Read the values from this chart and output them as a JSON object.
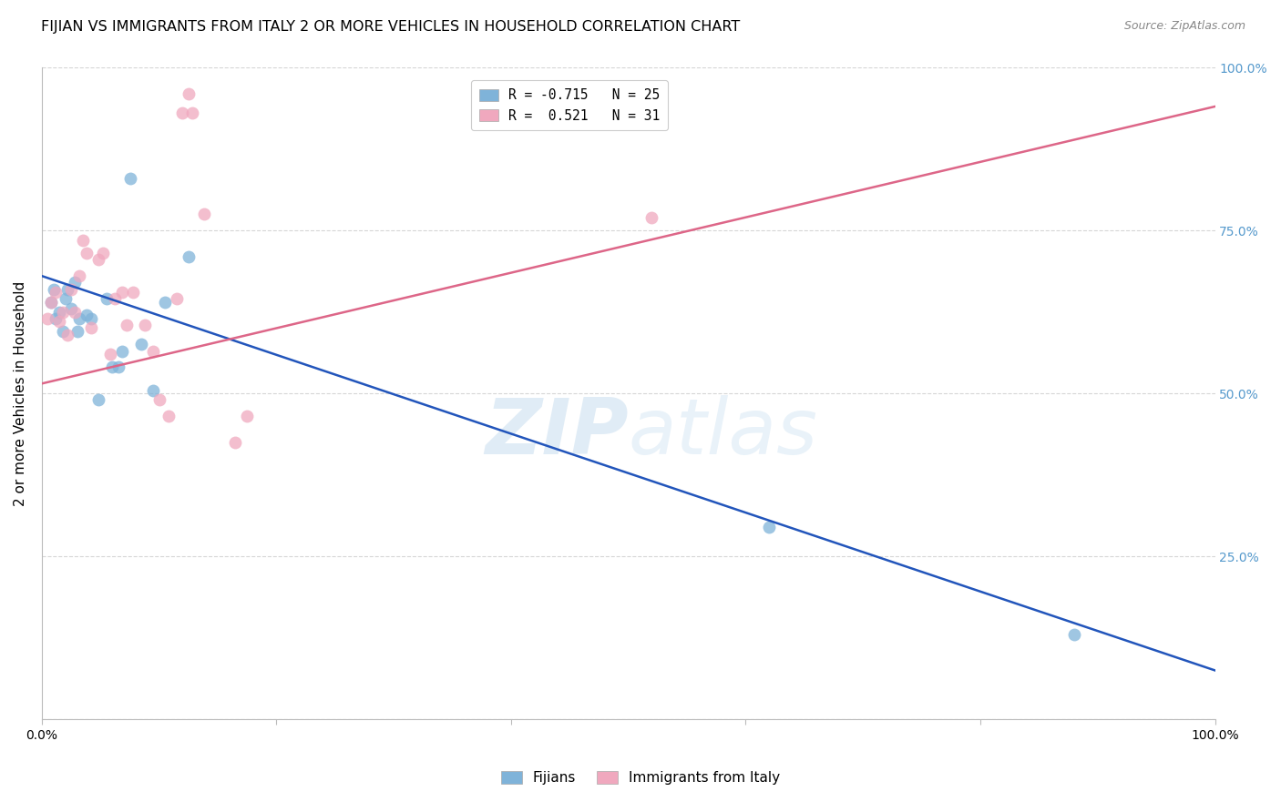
{
  "title": "FIJIAN VS IMMIGRANTS FROM ITALY 2 OR MORE VEHICLES IN HOUSEHOLD CORRELATION CHART",
  "source": "Source: ZipAtlas.com",
  "ylabel": "2 or more Vehicles in Household",
  "xlim": [
    0.0,
    1.0
  ],
  "ylim": [
    0.0,
    1.0
  ],
  "fijians_x": [
    0.008,
    0.01,
    0.012,
    0.015,
    0.018,
    0.02,
    0.022,
    0.025,
    0.028,
    0.03,
    0.032,
    0.038,
    0.042,
    0.048,
    0.055,
    0.06,
    0.065,
    0.068,
    0.075,
    0.085,
    0.095,
    0.105,
    0.125,
    0.62,
    0.88
  ],
  "fijians_y": [
    0.64,
    0.66,
    0.615,
    0.625,
    0.595,
    0.645,
    0.66,
    0.63,
    0.67,
    0.595,
    0.615,
    0.62,
    0.615,
    0.49,
    0.645,
    0.54,
    0.54,
    0.565,
    0.83,
    0.575,
    0.505,
    0.64,
    0.71,
    0.295,
    0.13
  ],
  "italy_x": [
    0.005,
    0.008,
    0.012,
    0.015,
    0.018,
    0.022,
    0.025,
    0.028,
    0.032,
    0.035,
    0.038,
    0.042,
    0.048,
    0.052,
    0.058,
    0.062,
    0.068,
    0.072,
    0.078,
    0.088,
    0.095,
    0.1,
    0.108,
    0.115,
    0.12,
    0.125,
    0.128,
    0.138,
    0.165,
    0.175,
    0.52
  ],
  "italy_y": [
    0.615,
    0.64,
    0.655,
    0.61,
    0.625,
    0.59,
    0.66,
    0.625,
    0.68,
    0.735,
    0.715,
    0.6,
    0.705,
    0.715,
    0.56,
    0.645,
    0.655,
    0.605,
    0.655,
    0.605,
    0.565,
    0.49,
    0.465,
    0.645,
    0.93,
    0.96,
    0.93,
    0.775,
    0.425,
    0.465,
    0.77
  ],
  "blue_line_x0": 0.0,
  "blue_line_x1": 1.0,
  "blue_line_y0": 0.68,
  "blue_line_y1": 0.075,
  "pink_line_x0": 0.0,
  "pink_line_x1": 1.0,
  "pink_line_y0": 0.515,
  "pink_line_y1": 0.94,
  "scatter_size": 100,
  "blue_color": "#7fb3d9",
  "pink_color": "#f0a8be",
  "blue_line_color": "#2255bb",
  "pink_line_color": "#dd6688",
  "title_fontsize": 11.5,
  "axis_label_fontsize": 11,
  "tick_fontsize": 10,
  "right_tick_color": "#5599cc",
  "legend_label_blue": "R = -0.715   N = 25",
  "legend_label_pink": "R =  0.521   N = 31",
  "background_color": "#ffffff",
  "grid_color": "#cccccc",
  "grid_alpha": 0.8
}
